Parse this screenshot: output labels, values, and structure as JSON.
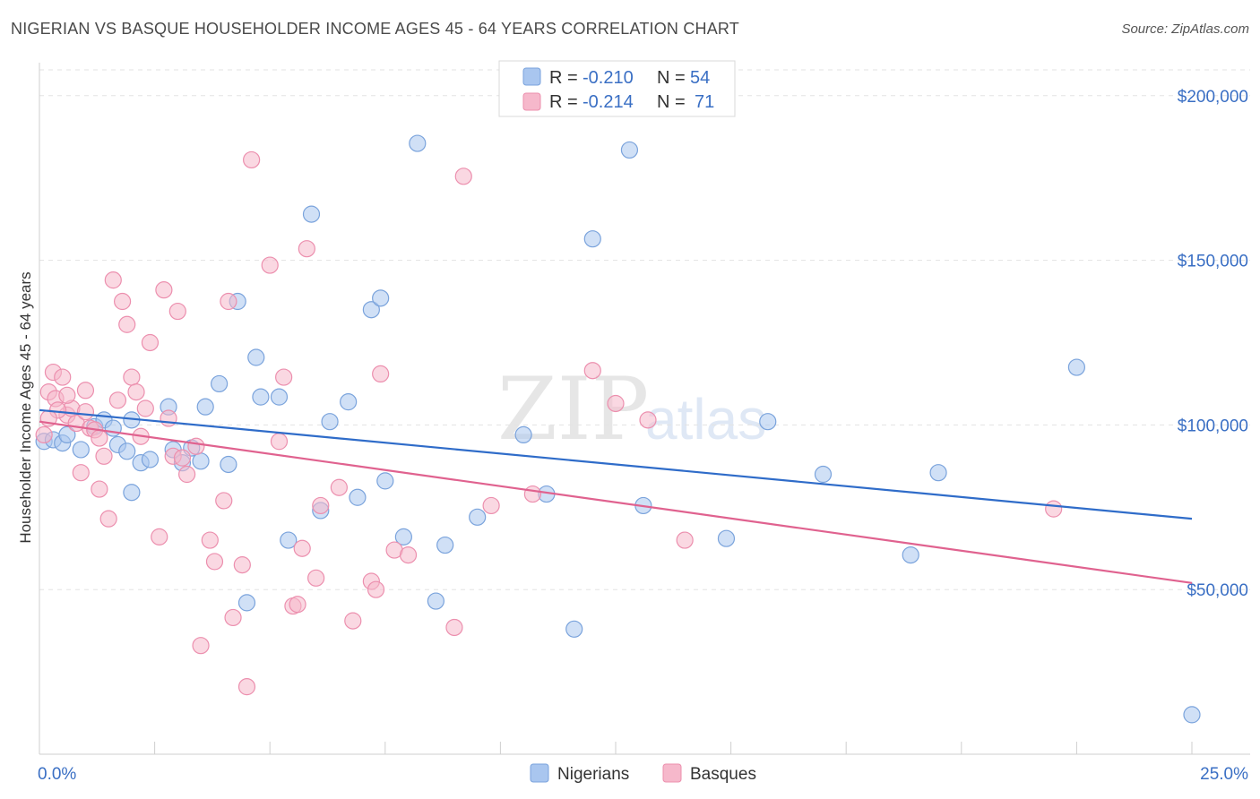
{
  "title": "NIGERIAN VS BASQUE HOUSEHOLDER INCOME AGES 45 - 64 YEARS CORRELATION CHART",
  "source": "Source: ZipAtlas.com",
  "watermark": {
    "zip": "ZIP",
    "atlas": "atlas"
  },
  "colors": {
    "nigerians_fill": "#a9c6ef",
    "nigerians_stroke": "#7aa3dc",
    "nigerians_line": "#2f6cc9",
    "basques_fill": "#f6b8cb",
    "basques_stroke": "#ec8fae",
    "basques_line": "#e0628f",
    "tick_text": "#3a6fc4",
    "grid": "#e3e3e3"
  },
  "legend": {
    "rows": [
      {
        "r_label": "R = ",
        "r_value": "-0.210",
        "n_label": "N = ",
        "n_value": "54"
      },
      {
        "r_label": "R = ",
        "r_value": "-0.214",
        "n_label": "N = ",
        "n_value": "71"
      }
    ]
  },
  "bottom_legend": [
    "Nigerians",
    "Basques"
  ],
  "chart_data": {
    "type": "scatter",
    "xlabel": "",
    "ylabel": "Householder Income Ages 45 - 64 years",
    "xlim": [
      0,
      25
    ],
    "ylim": [
      0,
      210000
    ],
    "x_tick_labels": [
      "0.0%",
      "25.0%"
    ],
    "y_ticks": [
      50000,
      100000,
      150000,
      200000
    ],
    "y_tick_labels": [
      "$50,000",
      "$100,000",
      "$150,000",
      "$200,000"
    ],
    "grid": "horizontal dashed",
    "legend_position": "top-center",
    "series": [
      {
        "name": "Nigerians",
        "trend": {
          "x": [
            0,
            25
          ],
          "y": [
            104500,
            71500
          ]
        },
        "points": [
          [
            0.1,
            95000
          ],
          [
            0.3,
            95500
          ],
          [
            0.5,
            94500
          ],
          [
            0.6,
            97000
          ],
          [
            0.9,
            92500
          ],
          [
            1.2,
            99500
          ],
          [
            1.4,
            101500
          ],
          [
            1.6,
            99000
          ],
          [
            1.7,
            94000
          ],
          [
            1.9,
            92000
          ],
          [
            2.0,
            79500
          ],
          [
            2.2,
            88500
          ],
          [
            2.4,
            89500
          ],
          [
            2.8,
            105500
          ],
          [
            2.9,
            92500
          ],
          [
            3.1,
            88500
          ],
          [
            3.3,
            93000
          ],
          [
            3.5,
            89000
          ],
          [
            3.6,
            105500
          ],
          [
            3.9,
            112500
          ],
          [
            4.1,
            88000
          ],
          [
            4.3,
            137500
          ],
          [
            4.7,
            120500
          ],
          [
            4.8,
            108500
          ],
          [
            5.2,
            108500
          ],
          [
            5.4,
            65000
          ],
          [
            5.9,
            164000
          ],
          [
            6.1,
            74000
          ],
          [
            6.3,
            101000
          ],
          [
            6.7,
            107000
          ],
          [
            6.9,
            78000
          ],
          [
            7.2,
            135000
          ],
          [
            7.4,
            138500
          ],
          [
            7.5,
            83000
          ],
          [
            7.9,
            66000
          ],
          [
            8.2,
            185500
          ],
          [
            8.6,
            46500
          ],
          [
            8.8,
            63500
          ],
          [
            9.5,
            72000
          ],
          [
            10.5,
            97000
          ],
          [
            11.0,
            79000
          ],
          [
            11.6,
            38000
          ],
          [
            12.0,
            156500
          ],
          [
            12.8,
            183500
          ],
          [
            13.1,
            75500
          ],
          [
            14.9,
            65500
          ],
          [
            15.8,
            101000
          ],
          [
            17.0,
            85000
          ],
          [
            18.9,
            60500
          ],
          [
            19.5,
            85500
          ],
          [
            22.5,
            117500
          ],
          [
            25.0,
            12000
          ],
          [
            4.5,
            46000
          ],
          [
            2.0,
            101500
          ]
        ]
      },
      {
        "name": "Basques",
        "trend": {
          "x": [
            0,
            25
          ],
          "y": [
            101000,
            52000
          ]
        },
        "points": [
          [
            0.1,
            97000
          ],
          [
            0.2,
            110000
          ],
          [
            0.3,
            116000
          ],
          [
            0.35,
            108000
          ],
          [
            0.5,
            114500
          ],
          [
            0.6,
            103000
          ],
          [
            0.7,
            105000
          ],
          [
            0.8,
            100500
          ],
          [
            0.9,
            85500
          ],
          [
            1.0,
            110500
          ],
          [
            1.1,
            99000
          ],
          [
            1.2,
            98500
          ],
          [
            1.3,
            80500
          ],
          [
            1.4,
            90500
          ],
          [
            1.5,
            71500
          ],
          [
            1.6,
            144000
          ],
          [
            1.7,
            107500
          ],
          [
            1.8,
            137500
          ],
          [
            1.9,
            130500
          ],
          [
            2.0,
            114500
          ],
          [
            2.1,
            110000
          ],
          [
            2.2,
            96500
          ],
          [
            2.3,
            105000
          ],
          [
            2.4,
            125000
          ],
          [
            2.6,
            66000
          ],
          [
            2.7,
            141000
          ],
          [
            2.8,
            102000
          ],
          [
            2.9,
            90500
          ],
          [
            3.0,
            134500
          ],
          [
            3.1,
            90000
          ],
          [
            3.2,
            85000
          ],
          [
            3.4,
            93500
          ],
          [
            3.5,
            33000
          ],
          [
            3.7,
            65000
          ],
          [
            3.8,
            58500
          ],
          [
            4.0,
            77000
          ],
          [
            4.1,
            137500
          ],
          [
            4.2,
            41500
          ],
          [
            4.4,
            57500
          ],
          [
            4.5,
            20500
          ],
          [
            4.6,
            180500
          ],
          [
            5.0,
            148500
          ],
          [
            5.2,
            95000
          ],
          [
            5.3,
            114500
          ],
          [
            5.5,
            45000
          ],
          [
            5.6,
            45500
          ],
          [
            5.7,
            62500
          ],
          [
            5.8,
            153500
          ],
          [
            6.0,
            53500
          ],
          [
            6.1,
            75500
          ],
          [
            6.5,
            81000
          ],
          [
            6.8,
            40500
          ],
          [
            7.2,
            52500
          ],
          [
            7.3,
            50000
          ],
          [
            7.4,
            115500
          ],
          [
            7.7,
            62000
          ],
          [
            8.0,
            60500
          ],
          [
            9.0,
            38500
          ],
          [
            9.2,
            175500
          ],
          [
            9.8,
            75500
          ],
          [
            10.7,
            79000
          ],
          [
            12.0,
            116500
          ],
          [
            12.5,
            106500
          ],
          [
            13.2,
            101500
          ],
          [
            14.0,
            65000
          ],
          [
            22.0,
            74500
          ],
          [
            0.4,
            104500
          ],
          [
            0.6,
            109000
          ],
          [
            1.0,
            104000
          ],
          [
            1.3,
            96000
          ],
          [
            0.2,
            102000
          ]
        ]
      }
    ]
  }
}
